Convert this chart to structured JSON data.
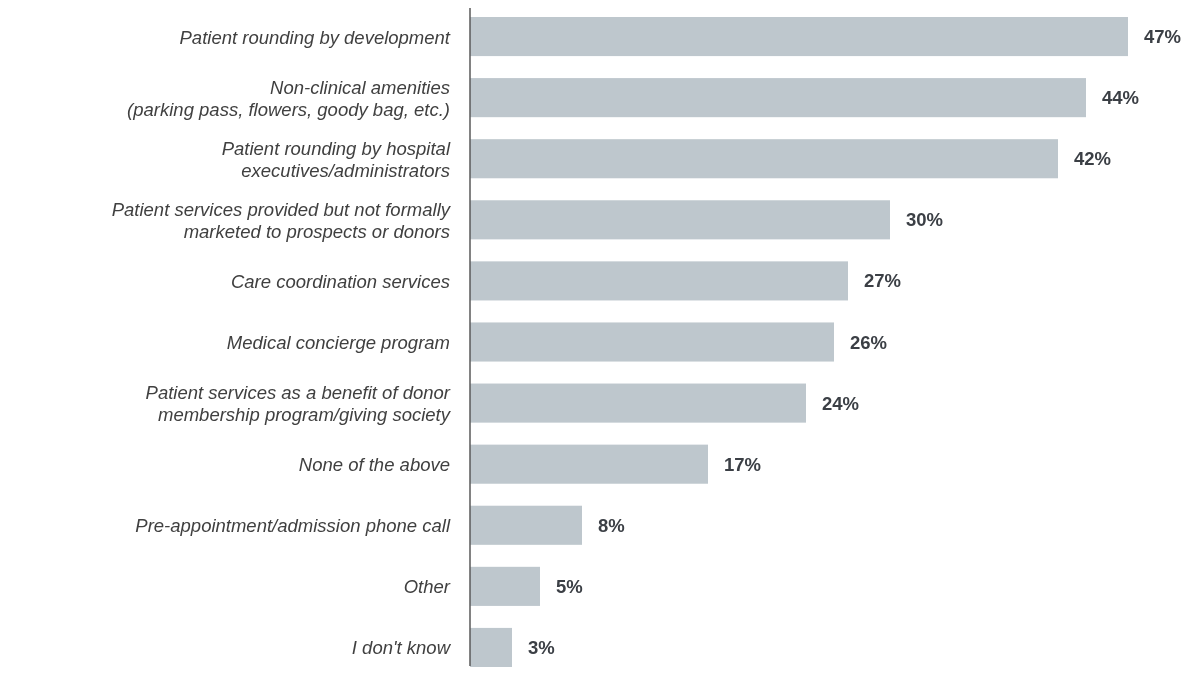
{
  "chart_data": {
    "type": "bar",
    "orientation": "horizontal",
    "categories": [
      "Patient rounding by development",
      "Non-clinical amenities\n(parking pass, flowers, goody bag, etc.)",
      "Patient rounding by hospital\nexecutives/administrators",
      "Patient services provided but not formally\nmarketed to prospects or donors",
      "Care coordination services",
      "Medical concierge program",
      "Patient services as a benefit of donor\nmembership program/giving society",
      "None of the above",
      "Pre-appointment/admission phone call",
      "Other",
      "I don't know"
    ],
    "values": [
      47,
      44,
      42,
      30,
      27,
      26,
      24,
      17,
      8,
      5,
      3
    ],
    "value_labels": [
      "47%",
      "44%",
      "42%",
      "30%",
      "27%",
      "26%",
      "24%",
      "17%",
      "8%",
      "5%",
      "3%"
    ],
    "color": "#bec7cd"
  }
}
